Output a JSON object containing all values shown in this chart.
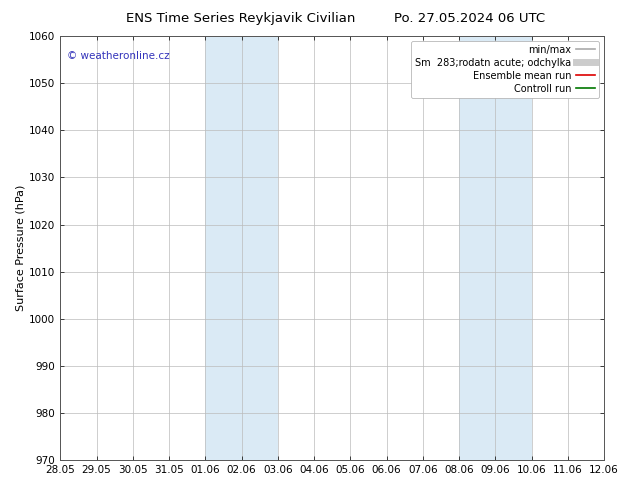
{
  "title_left": "ENS Time Series Reykjavik Civilian",
  "title_right": "Po. 27.05.2024 06 UTC",
  "ylabel": "Surface Pressure (hPa)",
  "ylim": [
    970,
    1060
  ],
  "yticks": [
    970,
    980,
    990,
    1000,
    1010,
    1020,
    1030,
    1040,
    1050,
    1060
  ],
  "x_labels": [
    "28.05",
    "29.05",
    "30.05",
    "31.05",
    "01.06",
    "02.06",
    "03.06",
    "04.06",
    "05.06",
    "06.06",
    "07.06",
    "08.06",
    "09.06",
    "10.06",
    "11.06",
    "12.06"
  ],
  "x_values": [
    0,
    1,
    2,
    3,
    4,
    5,
    6,
    7,
    8,
    9,
    10,
    11,
    12,
    13,
    14,
    15
  ],
  "shaded_bands": [
    {
      "xmin": 4,
      "xmax": 6,
      "color": "#daeaf5"
    },
    {
      "xmin": 11,
      "xmax": 13,
      "color": "#daeaf5"
    }
  ],
  "watermark": "© weatheronline.cz",
  "watermark_color": "#3333bb",
  "legend_items": [
    {
      "label": "min/max",
      "color": "#aaaaaa",
      "lw": 1.2,
      "ls": "-"
    },
    {
      "label": "Sm  283;rodatn acute; odchylka",
      "color": "#cccccc",
      "lw": 5,
      "ls": "-"
    },
    {
      "label": "Ensemble mean run",
      "color": "#dd0000",
      "lw": 1.2,
      "ls": "-"
    },
    {
      "label": "Controll run",
      "color": "#007700",
      "lw": 1.2,
      "ls": "-"
    }
  ],
  "bg_color": "#ffffff",
  "plot_bg_color": "#ffffff",
  "grid_color": "#bbbbbb",
  "title_fontsize": 9.5,
  "ylabel_fontsize": 8,
  "tick_fontsize": 7.5,
  "watermark_fontsize": 7.5,
  "legend_fontsize": 7
}
